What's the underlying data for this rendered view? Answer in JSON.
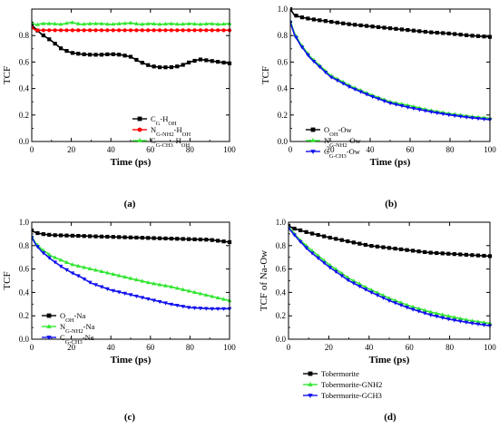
{
  "chart_data": [
    {
      "type": "line",
      "panel_label": "(a)",
      "xlabel": "Time (ps)",
      "ylabel": "TCF",
      "xlim": [
        0,
        100
      ],
      "ylim": [
        0,
        1.0
      ],
      "xticks": [
        0,
        20,
        40,
        60,
        80,
        100
      ],
      "yticks": [
        0.0,
        0.2,
        0.4,
        0.6,
        0.8
      ],
      "legend_position": "bottom-right",
      "series": [
        {
          "name_parts": [
            [
              "C",
              ""
            ],
            [
              "G",
              "sub"
            ],
            [
              "-H",
              ""
            ],
            [
              "OH",
              "sub"
            ]
          ],
          "color": "#000000",
          "marker": "square",
          "x": [
            0,
            2,
            5,
            10,
            15,
            20,
            25,
            30,
            35,
            40,
            45,
            50,
            55,
            60,
            65,
            70,
            75,
            80,
            85,
            90,
            95,
            100
          ],
          "y": [
            0.88,
            0.85,
            0.81,
            0.76,
            0.7,
            0.67,
            0.66,
            0.655,
            0.655,
            0.66,
            0.655,
            0.64,
            0.6,
            0.57,
            0.56,
            0.56,
            0.57,
            0.6,
            0.62,
            0.61,
            0.6,
            0.59
          ]
        },
        {
          "name_parts": [
            [
              "N",
              ""
            ],
            [
              "G-NH2",
              "sub"
            ],
            [
              "-H",
              ""
            ],
            [
              "OH",
              "sub"
            ]
          ],
          "color": "#ff0000",
          "marker": "circle",
          "x": [
            0,
            2,
            5,
            10,
            20,
            30,
            40,
            50,
            60,
            70,
            80,
            90,
            100
          ],
          "y": [
            0.86,
            0.84,
            0.84,
            0.84,
            0.84,
            0.84,
            0.84,
            0.84,
            0.84,
            0.84,
            0.84,
            0.84,
            0.84
          ]
        },
        {
          "name_parts": [
            [
              "C",
              ""
            ],
            [
              "G-CH3",
              "sub"
            ],
            [
              "-H",
              ""
            ],
            [
              "OH",
              "sub"
            ]
          ],
          "color": "#33e633",
          "marker": "triangle-up",
          "x": [
            0,
            2,
            5,
            10,
            15,
            20,
            25,
            30,
            35,
            40,
            45,
            50,
            55,
            60,
            65,
            70,
            75,
            80,
            85,
            90,
            95,
            100
          ],
          "y": [
            0.9,
            0.88,
            0.89,
            0.89,
            0.885,
            0.9,
            0.885,
            0.89,
            0.89,
            0.885,
            0.89,
            0.895,
            0.885,
            0.89,
            0.885,
            0.89,
            0.885,
            0.89,
            0.885,
            0.89,
            0.885,
            0.89
          ]
        }
      ]
    },
    {
      "type": "line",
      "panel_label": "(b)",
      "xlabel": "Time (ps)",
      "ylabel": "TCF",
      "xlim": [
        0,
        100
      ],
      "ylim": [
        0,
        1.0
      ],
      "xticks": [
        0,
        20,
        40,
        60,
        80,
        100
      ],
      "yticks": [
        0.0,
        0.2,
        0.4,
        0.6,
        0.8,
        1.0
      ],
      "legend_position": "bottom-left",
      "series": [
        {
          "name_parts": [
            [
              "O",
              ""
            ],
            [
              "OH",
              "sub"
            ],
            [
              "-Ow",
              ""
            ]
          ],
          "color": "#000000",
          "marker": "square",
          "x": [
            0,
            2,
            5,
            10,
            20,
            30,
            40,
            50,
            60,
            70,
            80,
            90,
            100
          ],
          "y": [
            1.0,
            0.955,
            0.94,
            0.925,
            0.905,
            0.885,
            0.87,
            0.855,
            0.84,
            0.825,
            0.815,
            0.8,
            0.79
          ]
        },
        {
          "name_parts": [
            [
              "N",
              ""
            ],
            [
              "G-NH2",
              "sub"
            ],
            [
              "-Ow",
              ""
            ]
          ],
          "color": "#33e633",
          "marker": "triangle-up",
          "x": [
            0,
            2,
            5,
            10,
            20,
            30,
            40,
            50,
            60,
            70,
            80,
            90,
            100
          ],
          "y": [
            0.91,
            0.82,
            0.74,
            0.64,
            0.5,
            0.42,
            0.355,
            0.3,
            0.27,
            0.235,
            0.21,
            0.19,
            0.175
          ]
        },
        {
          "name_parts": [
            [
              "C",
              ""
            ],
            [
              "G-CH3",
              "sub"
            ],
            [
              "-Ow",
              ""
            ]
          ],
          "color": "#1010ee",
          "marker": "triangle-down",
          "x": [
            0,
            2,
            5,
            10,
            20,
            30,
            40,
            50,
            60,
            70,
            80,
            90,
            100
          ],
          "y": [
            0.9,
            0.81,
            0.73,
            0.63,
            0.49,
            0.41,
            0.345,
            0.29,
            0.255,
            0.225,
            0.2,
            0.18,
            0.165
          ]
        }
      ]
    },
    {
      "type": "line",
      "panel_label": "(c)",
      "xlabel": "Time (ps)",
      "ylabel": "TCF",
      "xlim": [
        0,
        100
      ],
      "ylim": [
        0,
        1.0
      ],
      "xticks": [
        0,
        20,
        40,
        60,
        80,
        100
      ],
      "yticks": [
        0.0,
        0.2,
        0.4,
        0.6,
        0.8,
        1.0
      ],
      "legend_position": "bottom-left",
      "series": [
        {
          "name_parts": [
            [
              "O",
              ""
            ],
            [
              "OH",
              "sub"
            ],
            [
              "-Na",
              ""
            ]
          ],
          "color": "#000000",
          "marker": "square",
          "x": [
            0,
            2,
            5,
            10,
            20,
            30,
            40,
            50,
            60,
            70,
            80,
            90,
            100
          ],
          "y": [
            0.93,
            0.91,
            0.9,
            0.89,
            0.885,
            0.88,
            0.875,
            0.87,
            0.865,
            0.86,
            0.855,
            0.85,
            0.83
          ]
        },
        {
          "name_parts": [
            [
              "N",
              ""
            ],
            [
              "G-NH2",
              "sub"
            ],
            [
              "-Na",
              ""
            ]
          ],
          "color": "#33e633",
          "marker": "triangle-up",
          "x": [
            0,
            2,
            5,
            10,
            20,
            30,
            40,
            50,
            60,
            70,
            80,
            90,
            100
          ],
          "y": [
            0.88,
            0.82,
            0.77,
            0.71,
            0.64,
            0.6,
            0.56,
            0.52,
            0.48,
            0.45,
            0.41,
            0.37,
            0.33
          ]
        },
        {
          "name_parts": [
            [
              "C",
              ""
            ],
            [
              "G-CH3",
              "sub"
            ],
            [
              "-Na",
              ""
            ]
          ],
          "color": "#1010ee",
          "marker": "triangle-down",
          "x": [
            0,
            2,
            5,
            10,
            15,
            20,
            25,
            30,
            40,
            50,
            60,
            70,
            80,
            90,
            100
          ],
          "y": [
            0.87,
            0.81,
            0.75,
            0.68,
            0.62,
            0.57,
            0.53,
            0.48,
            0.42,
            0.38,
            0.34,
            0.3,
            0.27,
            0.26,
            0.26
          ]
        }
      ]
    },
    {
      "type": "line",
      "panel_label": "(d)",
      "xlabel": "Time (ps)",
      "ylabel": "TCF of Na-Ow",
      "xlim": [
        0,
        100
      ],
      "ylim": [
        0,
        1.0
      ],
      "xticks": [
        0,
        20,
        40,
        60,
        80,
        100
      ],
      "yticks": [
        0.0,
        0.2,
        0.4,
        0.6,
        0.8,
        1.0
      ],
      "legend_position": "bottom-left",
      "series": [
        {
          "name_parts": [
            [
              "Tobermorite",
              ""
            ]
          ],
          "color": "#000000",
          "marker": "square",
          "x": [
            0,
            2,
            5,
            10,
            20,
            30,
            40,
            50,
            60,
            70,
            80,
            90,
            100
          ],
          "y": [
            0.97,
            0.95,
            0.935,
            0.91,
            0.87,
            0.835,
            0.8,
            0.78,
            0.76,
            0.74,
            0.73,
            0.72,
            0.71
          ]
        },
        {
          "name_parts": [
            [
              "Tobermorite-GNH2",
              ""
            ]
          ],
          "color": "#33e633",
          "marker": "triangle-up",
          "x": [
            0,
            2,
            5,
            10,
            20,
            30,
            40,
            50,
            60,
            70,
            80,
            90,
            100
          ],
          "y": [
            0.96,
            0.92,
            0.86,
            0.78,
            0.64,
            0.52,
            0.43,
            0.35,
            0.285,
            0.235,
            0.195,
            0.16,
            0.135
          ]
        },
        {
          "name_parts": [
            [
              "Tobermorite-GCH3",
              ""
            ]
          ],
          "color": "#1010ee",
          "marker": "triangle-down",
          "x": [
            0,
            2,
            5,
            10,
            20,
            30,
            40,
            50,
            60,
            70,
            80,
            90,
            100
          ],
          "y": [
            0.95,
            0.91,
            0.85,
            0.76,
            0.62,
            0.5,
            0.41,
            0.33,
            0.265,
            0.21,
            0.17,
            0.14,
            0.115
          ]
        }
      ]
    }
  ]
}
